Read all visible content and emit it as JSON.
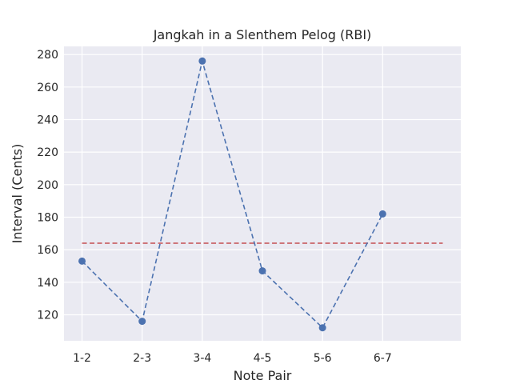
{
  "chart_data": {
    "type": "line",
    "title": "Jangkah in a Slenthem Pelog (RBI)",
    "xlabel": "Note Pair",
    "ylabel": "Interval (Cents)",
    "categories": [
      "1-2",
      "2-3",
      "3-4",
      "4-5",
      "5-6",
      "6-7"
    ],
    "series": [
      {
        "values": [
          153,
          116,
          276,
          147,
          112,
          182
        ],
        "color": "#4c72b0",
        "style": "dashed",
        "marker": "circle"
      }
    ],
    "reference_line": {
      "value": 164,
      "color": "#c44e52",
      "style": "dashed",
      "x_extent": [
        0,
        6
      ]
    },
    "y_ticks": [
      120,
      140,
      160,
      180,
      200,
      220,
      240,
      260,
      280
    ],
    "ylim": [
      104,
      285
    ],
    "xlim": [
      -0.3,
      6.3
    ],
    "grid": true,
    "background": "#eaeaf2"
  }
}
